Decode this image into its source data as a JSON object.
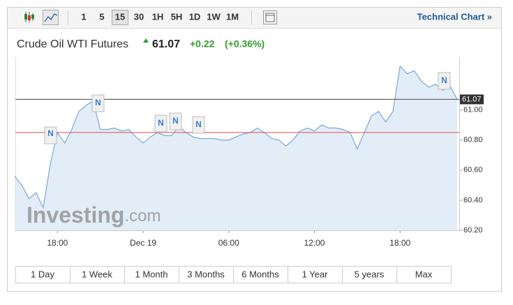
{
  "toolbar": {
    "intervals": [
      "1",
      "5",
      "15",
      "30",
      "1H",
      "5H",
      "1D",
      "1W",
      "1M"
    ],
    "selected": "15",
    "technical_chart": "Technical Chart »"
  },
  "chart_data": {
    "type": "line",
    "title": "Crude Oil WTI Futures",
    "last": 61.07,
    "change": "+0.22",
    "change_pct": "(+0.36%)",
    "categories": [
      null,
      null,
      null,
      null,
      null,
      null,
      "18:00",
      null,
      null,
      null,
      null,
      null,
      null,
      null,
      null,
      null,
      null,
      null,
      "Dec 19",
      null,
      null,
      null,
      null,
      null,
      null,
      null,
      null,
      null,
      null,
      null,
      "06:00",
      null,
      null,
      null,
      null,
      null,
      null,
      null,
      null,
      null,
      null,
      null,
      "12:00",
      null,
      null,
      null,
      null,
      null,
      null,
      null,
      null,
      null,
      null,
      null,
      "18:00",
      null,
      null,
      null,
      null,
      null,
      null,
      null,
      null
    ],
    "series": [
      {
        "color": "#7aa7d6",
        "values": [
          60.56,
          60.5,
          60.41,
          60.45,
          60.35,
          60.64,
          60.85,
          60.78,
          60.87,
          60.99,
          61.03,
          61.06,
          60.87,
          60.87,
          60.88,
          60.86,
          60.87,
          60.82,
          60.78,
          60.82,
          60.85,
          60.83,
          60.83,
          60.89,
          60.85,
          60.82,
          60.81,
          60.81,
          60.81,
          60.8,
          60.8,
          60.82,
          60.84,
          60.85,
          60.88,
          60.85,
          60.81,
          60.8,
          60.76,
          60.8,
          60.86,
          60.88,
          60.86,
          60.9,
          60.88,
          60.88,
          60.87,
          60.85,
          60.74,
          60.85,
          60.96,
          60.99,
          60.92,
          60.99,
          61.29,
          61.24,
          61.26,
          61.19,
          61.15,
          61.17,
          61.13,
          61.16,
          61.07
        ]
      }
    ],
    "prev_close": 60.85,
    "prev_close_color": "#e06060",
    "ylim": [
      60.2,
      61.35
    ],
    "yticks": [
      {
        "value": 60.2,
        "label": "60.20"
      },
      {
        "value": 60.4,
        "label": "60.40"
      },
      {
        "value": 60.6,
        "label": "60.60"
      },
      {
        "value": 60.8,
        "label": "60.80"
      },
      {
        "value": 61.0,
        "label": "61.00"
      }
    ],
    "last_label": "61.07",
    "news_label": "N",
    "watermark": [
      "Investing",
      ".com"
    ]
  },
  "ranges": [
    "1 Day",
    "1 Week",
    "1 Month",
    "3 Months",
    "6 Months",
    "1 Year",
    "5 years",
    "Max"
  ]
}
